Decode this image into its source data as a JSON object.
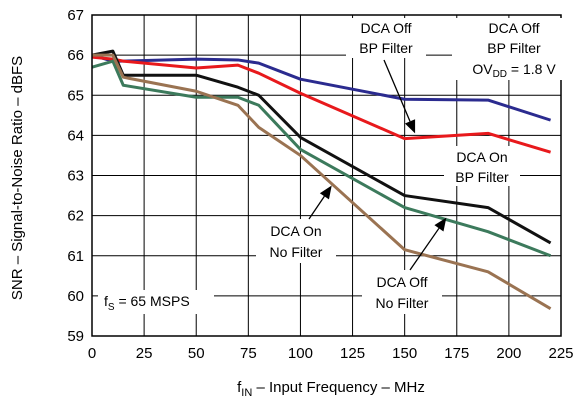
{
  "chart_data": {
    "type": "line",
    "xlabel_main": "f",
    "xlabel_sub": "IN",
    "xlabel_rest": " – Input Frequency – MHz",
    "ylabel": "SNR – Signal-to-Noise Ratio – dBFS",
    "xlim": [
      0,
      225
    ],
    "ylim": [
      59,
      67
    ],
    "xticks": [
      "0",
      "25",
      "50",
      "75",
      "100",
      "125",
      "150",
      "175",
      "200",
      "225"
    ],
    "yticks": [
      "59",
      "60",
      "61",
      "62",
      "63",
      "64",
      "65",
      "66",
      "67"
    ],
    "grid": true,
    "colors": {
      "blue": "#2b2b8f",
      "red": "#e8191c",
      "black": "#111111",
      "green": "#3c7a5c",
      "brown": "#9a7352",
      "grid": "#000000"
    },
    "series": [
      {
        "name": "DCA Off BP Filter, OVDD = 1.8 V",
        "color_key": "blue",
        "x": [
          0,
          10,
          15,
          50,
          70,
          80,
          100,
          150,
          190,
          220
        ],
        "y": [
          66.0,
          65.85,
          65.85,
          65.9,
          65.88,
          65.8,
          65.4,
          64.9,
          64.88,
          64.38
        ]
      },
      {
        "name": "DCA Off BP Filter",
        "color_key": "red",
        "x": [
          0,
          10,
          15,
          50,
          70,
          80,
          100,
          150,
          190,
          220
        ],
        "y": [
          65.95,
          65.9,
          65.85,
          65.68,
          65.75,
          65.55,
          65.05,
          63.92,
          64.05,
          63.58
        ]
      },
      {
        "name": "DCA On BP Filter",
        "color_key": "black",
        "x": [
          0,
          10,
          15,
          50,
          70,
          80,
          100,
          150,
          190,
          220
        ],
        "y": [
          66.0,
          66.1,
          65.5,
          65.5,
          65.2,
          65.0,
          63.95,
          62.5,
          62.2,
          61.32
        ]
      },
      {
        "name": "DCA On No Filter",
        "color_key": "green",
        "x": [
          0,
          10,
          15,
          50,
          70,
          80,
          100,
          150,
          190,
          220
        ],
        "y": [
          65.7,
          65.85,
          65.25,
          64.95,
          64.95,
          64.75,
          63.65,
          62.2,
          61.6,
          61.0
        ]
      },
      {
        "name": "DCA Off No Filter",
        "color_key": "brown",
        "x": [
          0,
          10,
          15,
          50,
          70,
          80,
          100,
          150,
          190,
          220
        ],
        "y": [
          66.0,
          66.0,
          65.45,
          65.1,
          64.75,
          64.2,
          63.5,
          61.15,
          60.6,
          59.68
        ]
      }
    ],
    "annotations": [
      {
        "lines": [
          "DCA Off",
          "BP Filter"
        ],
        "arrow_to": [
          155,
          64.05
        ]
      },
      {
        "lines": [
          "DCA Off",
          "BP Filter",
          "OVDD = 1.8 V"
        ]
      },
      {
        "lines": [
          "DCA On",
          "BP Filter"
        ]
      },
      {
        "lines": [
          "DCA On",
          "No Filter"
        ],
        "arrow_to": [
          115,
          62.75
        ]
      },
      {
        "lines": [
          "DCA Off",
          "No Filter"
        ],
        "arrow_to": [
          170,
          61.95
        ]
      },
      {
        "lines": [
          "fS = 65 MSPS"
        ]
      }
    ]
  }
}
